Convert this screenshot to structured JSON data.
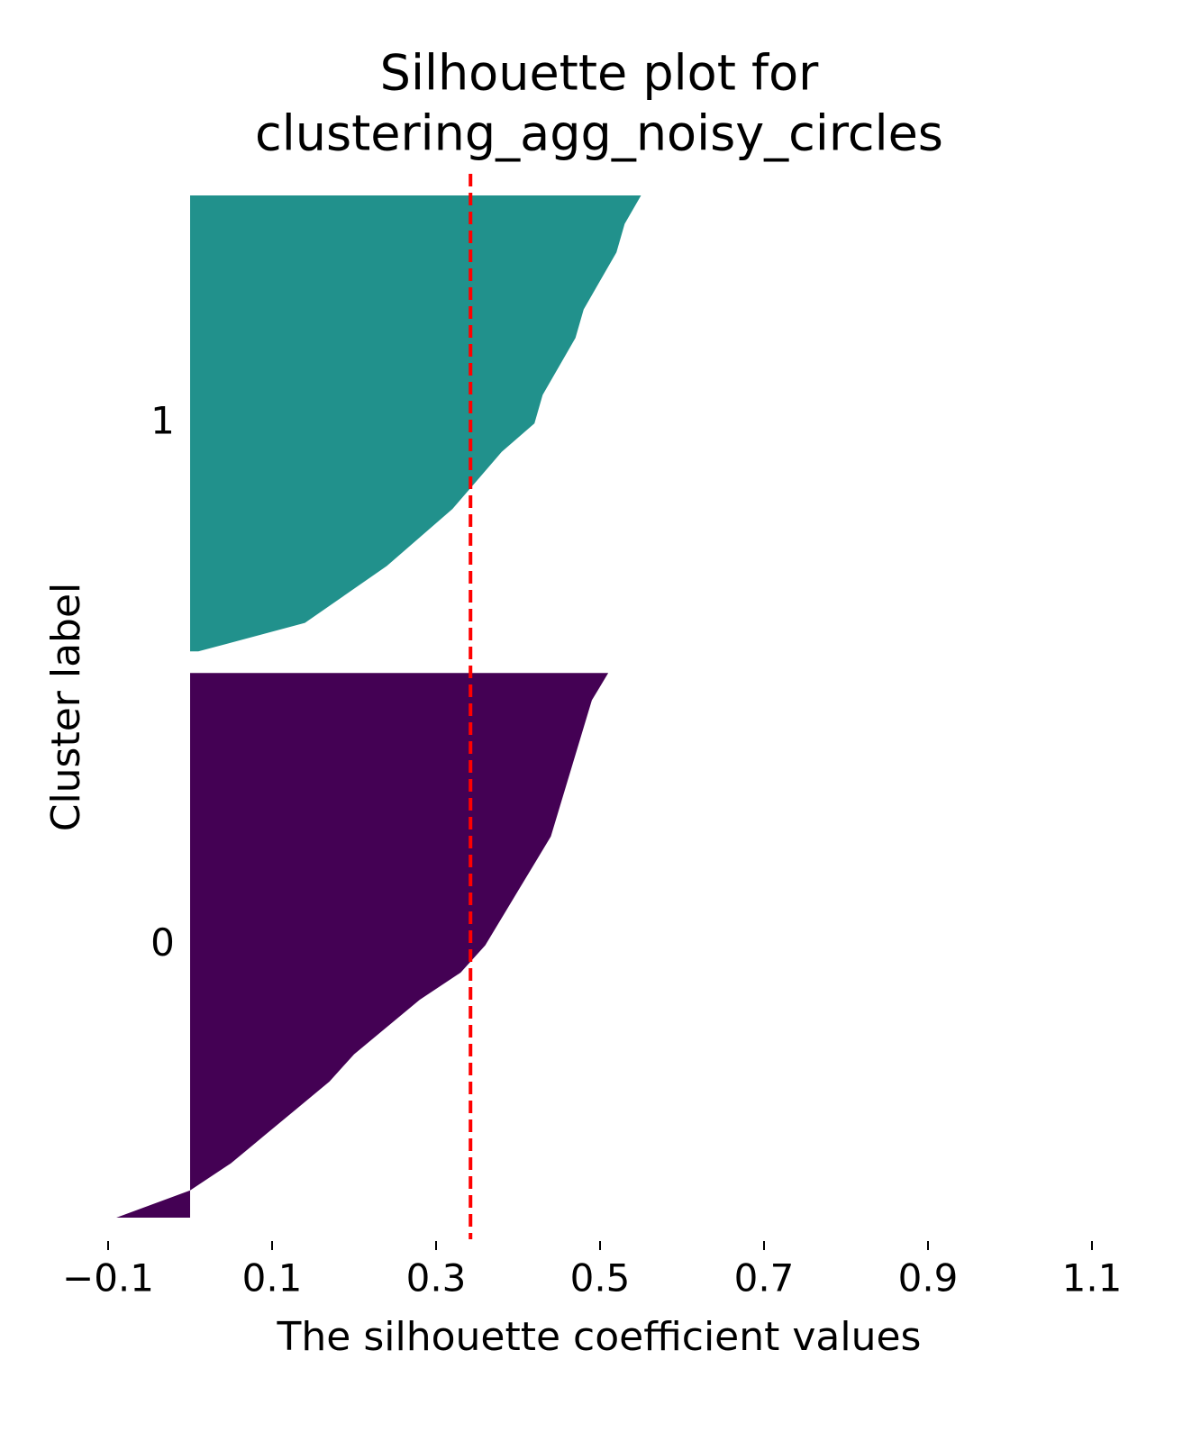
{
  "chart_data": {
    "type": "silhouette",
    "title": [
      "Silhouette plot for",
      "clustering_agg_noisy_circles"
    ],
    "xlabel": "The silhouette coefficient values",
    "ylabel": "Cluster label",
    "xlim": [
      -0.1,
      1.1
    ],
    "xticks": [
      {
        "value": -0.1,
        "label": "−0.1"
      },
      0.1,
      0.3,
      0.5,
      0.7,
      0.9,
      1.1
    ],
    "ylim": [
      0,
      493
    ],
    "gap": 10,
    "series": [
      {
        "name": "0",
        "color": "#440154",
        "count": 252,
        "values": [
          -0.09,
          0.0,
          0.05,
          0.09,
          0.13,
          0.17,
          0.2,
          0.24,
          0.28,
          0.33,
          0.36,
          0.38,
          0.4,
          0.42,
          0.44,
          0.45,
          0.46,
          0.47,
          0.48,
          0.49,
          0.51
        ]
      },
      {
        "name": "1",
        "color": "#21918c",
        "count": 211,
        "values": [
          0.01,
          0.14,
          0.19,
          0.24,
          0.28,
          0.32,
          0.35,
          0.38,
          0.42,
          0.43,
          0.45,
          0.47,
          0.48,
          0.5,
          0.52,
          0.53,
          0.55
        ]
      }
    ],
    "average": 0.342,
    "average_color": "#ff0000"
  }
}
